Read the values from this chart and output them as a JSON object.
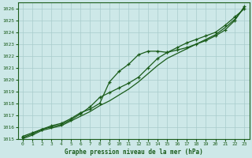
{
  "title": "Graphe pression niveau de la mer (hPa)",
  "background_color": "#cde8e8",
  "line_color": "#1a5c1a",
  "xlim": [
    -0.5,
    23.5
  ],
  "ylim": [
    1015.0,
    1026.5
  ],
  "yticks": [
    1015,
    1016,
    1017,
    1018,
    1019,
    1020,
    1021,
    1022,
    1023,
    1024,
    1025,
    1026
  ],
  "xticks": [
    0,
    1,
    2,
    3,
    4,
    5,
    6,
    7,
    8,
    9,
    10,
    11,
    12,
    13,
    14,
    15,
    16,
    17,
    18,
    19,
    20,
    21,
    22,
    23
  ],
  "series1": [
    1015.2,
    1015.5,
    1015.8,
    1016.1,
    1016.3,
    1016.7,
    1017.2,
    1017.5,
    1018.0,
    1019.8,
    1020.7,
    1021.3,
    1022.1,
    1022.4,
    1022.4,
    1022.3,
    1022.5,
    1022.7,
    1023.0,
    1023.3,
    1023.7,
    1024.2,
    1025.0,
    1026.2
  ],
  "series2": [
    1015.1,
    1015.4,
    1015.8,
    1016.0,
    1016.2,
    1016.6,
    1017.1,
    1017.7,
    1018.5,
    1018.9,
    1019.3,
    1019.7,
    1020.2,
    1021.0,
    1021.8,
    1022.3,
    1022.7,
    1023.1,
    1023.4,
    1023.7,
    1024.0,
    1024.6,
    1025.3,
    1026.0
  ],
  "series3": [
    1015.0,
    1015.3,
    1015.7,
    1015.9,
    1016.1,
    1016.5,
    1016.9,
    1017.3,
    1017.8,
    1018.2,
    1018.7,
    1019.2,
    1019.8,
    1020.5,
    1021.2,
    1021.8,
    1022.2,
    1022.6,
    1023.0,
    1023.4,
    1023.8,
    1024.4,
    1025.1,
    1026.1
  ]
}
